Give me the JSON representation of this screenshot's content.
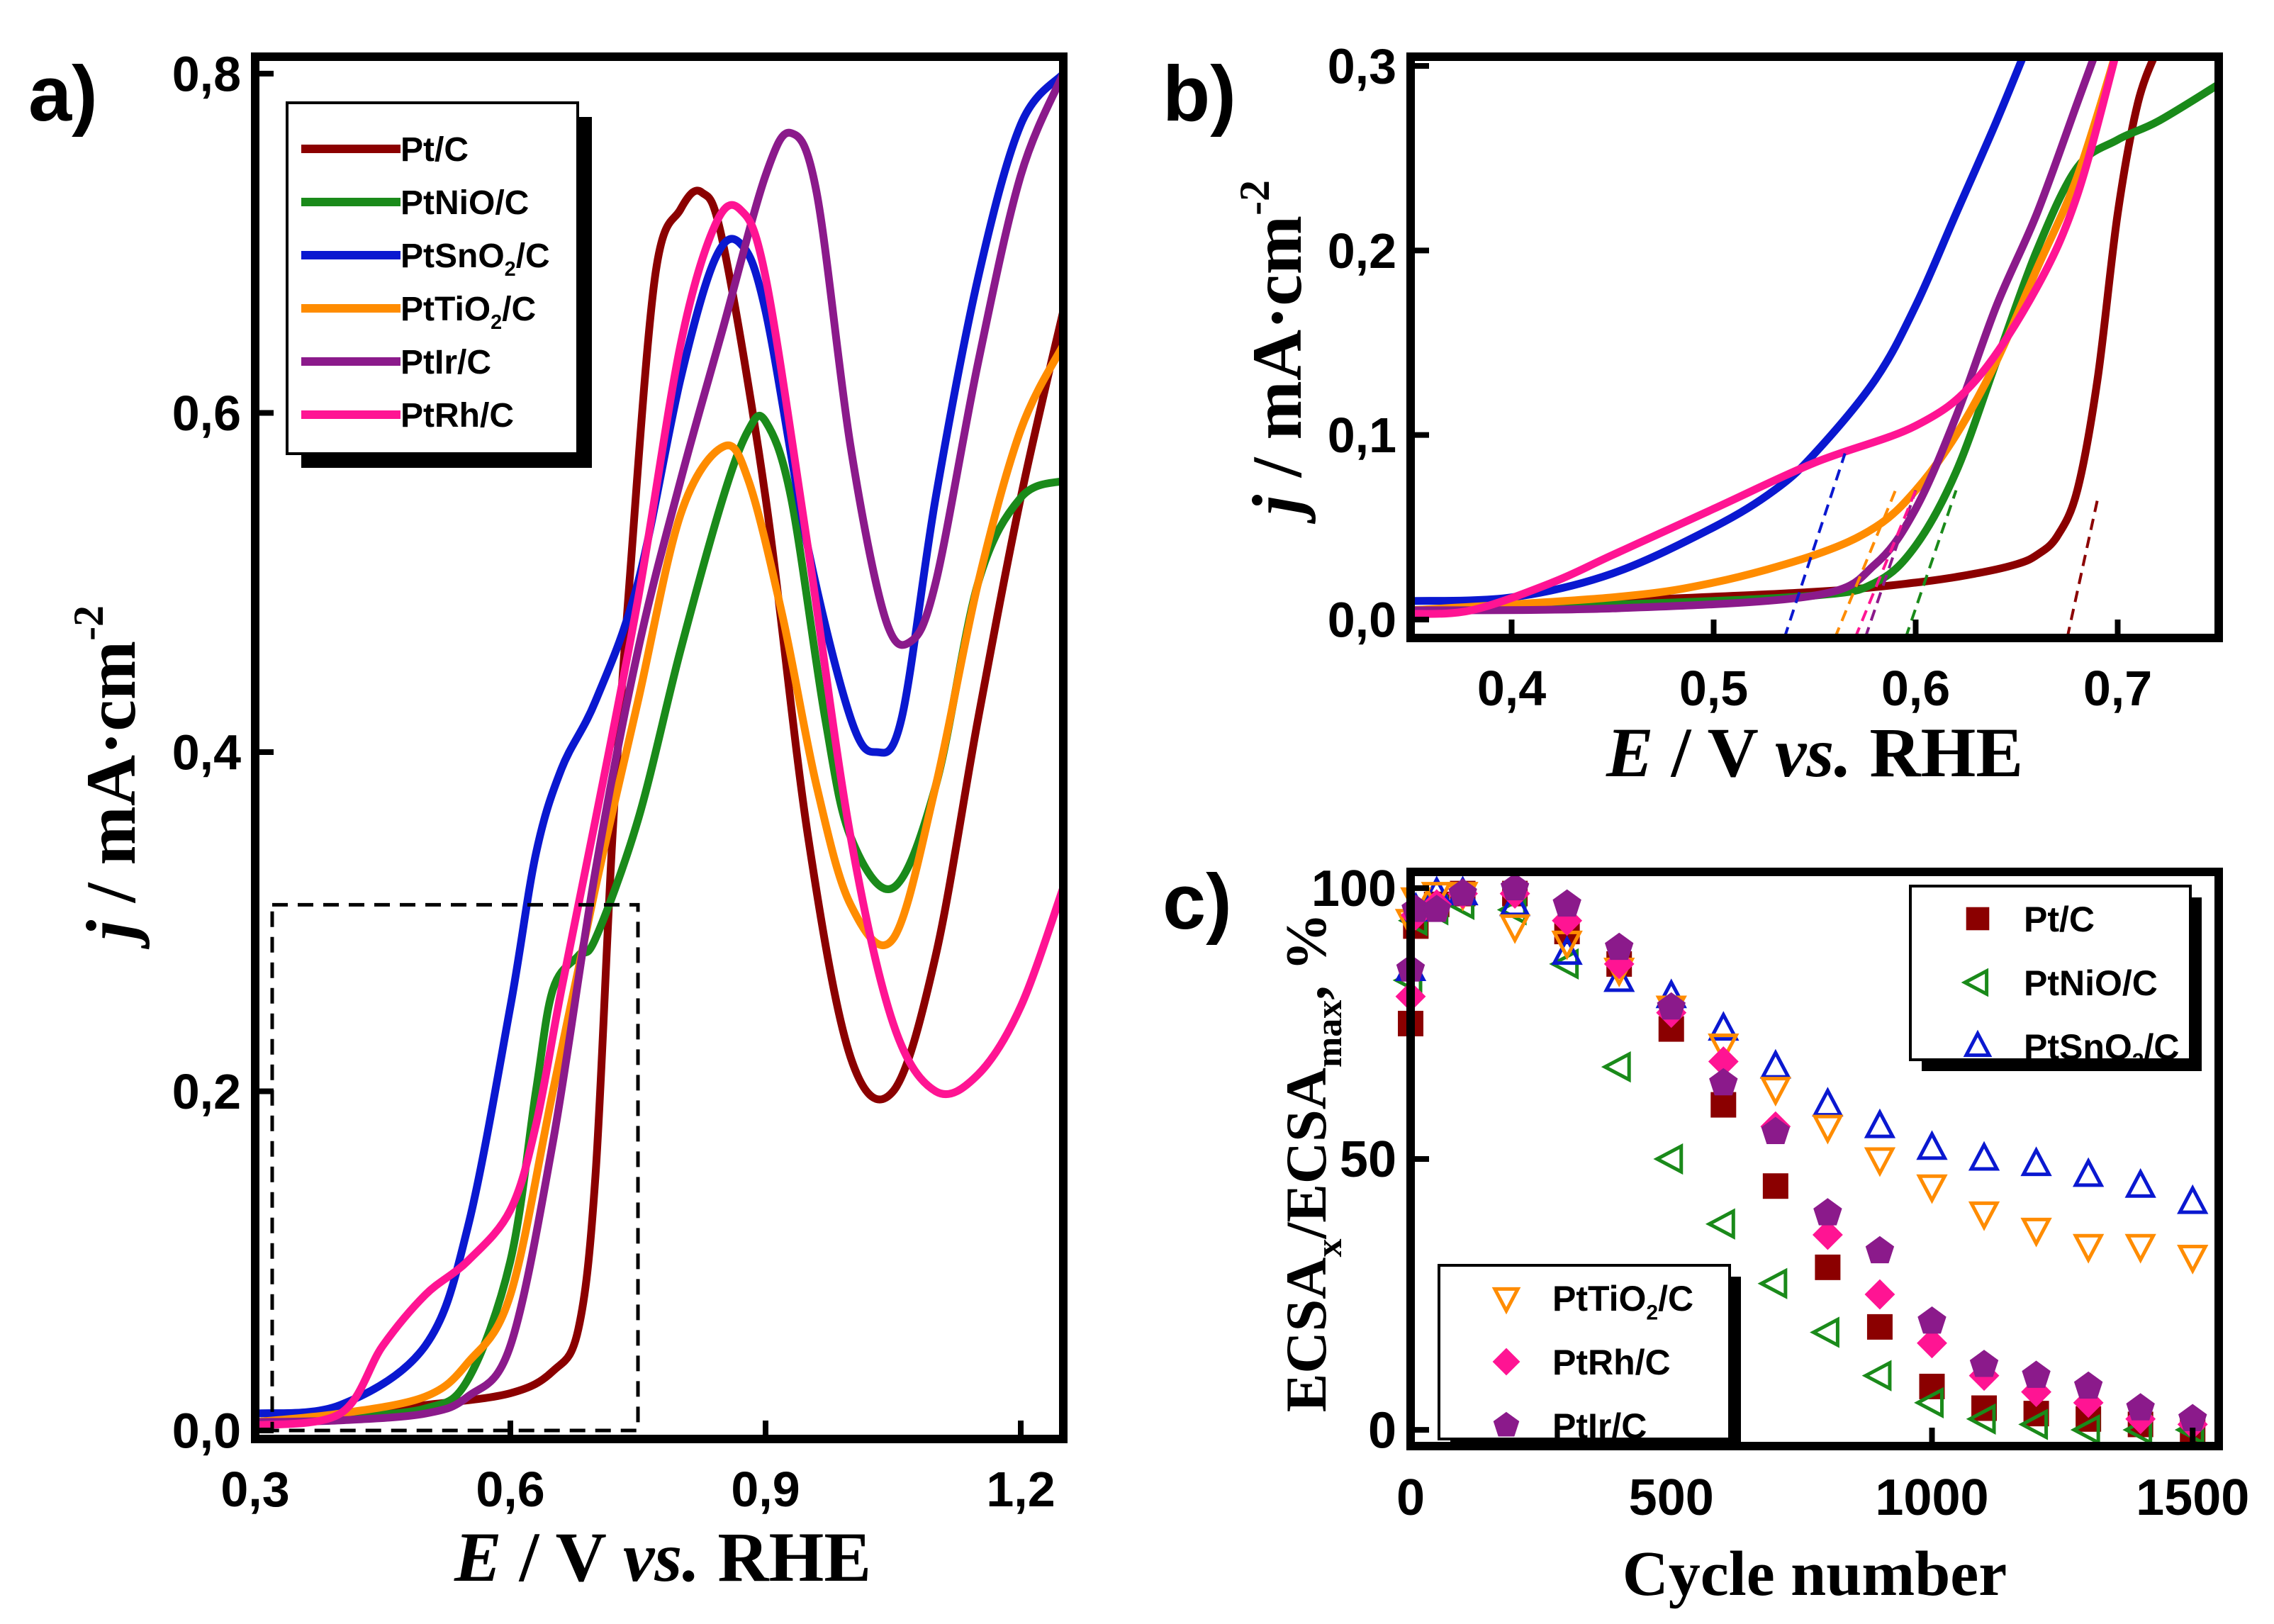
{
  "chart_data": [
    {
      "panel": "a)",
      "type": "line",
      "xlabel": {
        "italic": "E",
        "rest": " / V ",
        "italic2": "vs.",
        "rest2": " RHE"
      },
      "ylabel": {
        "italic": "j",
        "rest": " / mA·cm",
        "sup": "-2"
      },
      "xlim": [
        0.3,
        1.25
      ],
      "ylim": [
        -0.005,
        0.81
      ],
      "xticks": [
        0.3,
        0.6,
        0.9,
        1.2
      ],
      "xtick_labels": [
        "0,3",
        "0,6",
        "0,9",
        "1,2"
      ],
      "yticks": [
        0.0,
        0.2,
        0.4,
        0.6,
        0.8
      ],
      "ytick_labels": [
        "0,0",
        "0,2",
        "0,4",
        "0,6",
        "0,8"
      ],
      "zoom_box": {
        "x": [
          0.32,
          0.75
        ],
        "y": [
          0.0,
          0.31
        ]
      },
      "legend": {
        "position": "top-left"
      },
      "series": [
        {
          "name": "Pt/C",
          "base": "Pt",
          "sub": "",
          "tail": "/C",
          "color": "#8b0000",
          "x": [
            0.3,
            0.4,
            0.5,
            0.6,
            0.65,
            0.68,
            0.7,
            0.72,
            0.74,
            0.77,
            0.8,
            0.825,
            0.85,
            0.9,
            0.95,
            1.0,
            1.05,
            1.1,
            1.15,
            1.2,
            1.25
          ],
          "y": [
            0.005,
            0.01,
            0.015,
            0.022,
            0.035,
            0.06,
            0.15,
            0.35,
            0.5,
            0.68,
            0.72,
            0.73,
            0.7,
            0.55,
            0.35,
            0.22,
            0.2,
            0.28,
            0.42,
            0.55,
            0.66
          ]
        },
        {
          "name": "PtNiO/C",
          "base": "PtNiO",
          "sub": "",
          "tail": "/C",
          "color": "#1a8a1a",
          "x": [
            0.3,
            0.4,
            0.5,
            0.55,
            0.6,
            0.63,
            0.65,
            0.68,
            0.7,
            0.75,
            0.8,
            0.85,
            0.88,
            0.9,
            0.93,
            0.97,
            1.0,
            1.05,
            1.1,
            1.15,
            1.2,
            1.25
          ],
          "y": [
            0.005,
            0.008,
            0.013,
            0.03,
            0.1,
            0.2,
            0.26,
            0.28,
            0.29,
            0.36,
            0.46,
            0.55,
            0.59,
            0.595,
            0.55,
            0.42,
            0.35,
            0.32,
            0.38,
            0.5,
            0.55,
            0.56
          ]
        },
        {
          "name": "PtSnO2/C",
          "base": "PtSnO",
          "sub": "2",
          "tail": "/C",
          "color": "#0a18d0",
          "x": [
            0.3,
            0.4,
            0.5,
            0.55,
            0.6,
            0.63,
            0.66,
            0.7,
            0.75,
            0.8,
            0.84,
            0.87,
            0.9,
            0.95,
            1.0,
            1.03,
            1.06,
            1.1,
            1.15,
            1.2,
            1.25
          ],
          "y": [
            0.01,
            0.015,
            0.05,
            0.12,
            0.25,
            0.34,
            0.39,
            0.43,
            0.5,
            0.62,
            0.69,
            0.7,
            0.66,
            0.52,
            0.42,
            0.4,
            0.42,
            0.55,
            0.68,
            0.77,
            0.8
          ]
        },
        {
          "name": "PtTiO2/C",
          "base": "PtTiO",
          "sub": "2",
          "tail": "/C",
          "color": "#ff8c00",
          "x": [
            0.3,
            0.4,
            0.5,
            0.55,
            0.6,
            0.65,
            0.7,
            0.75,
            0.8,
            0.85,
            0.88,
            0.92,
            0.96,
            1.0,
            1.05,
            1.1,
            1.15,
            1.2,
            1.25
          ],
          "y": [
            0.005,
            0.01,
            0.02,
            0.04,
            0.08,
            0.2,
            0.32,
            0.43,
            0.54,
            0.58,
            0.56,
            0.48,
            0.38,
            0.31,
            0.29,
            0.38,
            0.5,
            0.59,
            0.64
          ]
        },
        {
          "name": "PtIr/C",
          "base": "PtIr",
          "sub": "",
          "tail": "/C",
          "color": "#8b1a8b",
          "x": [
            0.3,
            0.4,
            0.5,
            0.55,
            0.6,
            0.65,
            0.7,
            0.75,
            0.8,
            0.85,
            0.9,
            0.93,
            0.96,
            1.0,
            1.04,
            1.07,
            1.1,
            1.15,
            1.2,
            1.25
          ],
          "y": [
            0.005,
            0.006,
            0.01,
            0.02,
            0.05,
            0.17,
            0.33,
            0.46,
            0.56,
            0.65,
            0.74,
            0.765,
            0.73,
            0.58,
            0.48,
            0.465,
            0.5,
            0.63,
            0.74,
            0.8
          ]
        },
        {
          "name": "PtRh/C",
          "base": "PtRh",
          "sub": "",
          "tail": "/C",
          "color": "#ff1493",
          "x": [
            0.3,
            0.4,
            0.45,
            0.5,
            0.55,
            0.6,
            0.63,
            0.66,
            0.7,
            0.75,
            0.8,
            0.84,
            0.87,
            0.9,
            0.95,
            1.0,
            1.05,
            1.1,
            1.15,
            1.2,
            1.25
          ],
          "y": [
            0.003,
            0.01,
            0.05,
            0.08,
            0.1,
            0.13,
            0.18,
            0.26,
            0.36,
            0.49,
            0.64,
            0.71,
            0.72,
            0.68,
            0.52,
            0.35,
            0.24,
            0.2,
            0.21,
            0.25,
            0.32
          ]
        }
      ]
    },
    {
      "panel": "b)",
      "type": "line",
      "xlabel": {
        "italic": "E",
        "rest": " / V ",
        "italic2": "vs.",
        "rest2": " RHE"
      },
      "ylabel": {
        "italic": "j",
        "rest": " / mA·cm",
        "sup": "-2"
      },
      "xlim": [
        0.35,
        0.75
      ],
      "ylim": [
        -0.01,
        0.305
      ],
      "xticks": [
        0.4,
        0.5,
        0.6,
        0.7
      ],
      "xtick_labels": [
        "0,4",
        "0,5",
        "0,6",
        "0,7"
      ],
      "yticks": [
        0.0,
        0.1,
        0.2,
        0.3
      ],
      "ytick_labels": [
        "0,0",
        "0,1",
        "0,2",
        "0,3"
      ],
      "series": [
        {
          "name": "Pt/C",
          "color": "#8b0000",
          "x": [
            0.35,
            0.45,
            0.55,
            0.6,
            0.63,
            0.65,
            0.66,
            0.67,
            0.68,
            0.69,
            0.7,
            0.71,
            0.72
          ],
          "y": [
            0.005,
            0.01,
            0.015,
            0.02,
            0.025,
            0.03,
            0.035,
            0.045,
            0.07,
            0.13,
            0.22,
            0.28,
            0.31
          ]
        },
        {
          "name": "PtNiO/C",
          "color": "#1a8a1a",
          "x": [
            0.35,
            0.45,
            0.55,
            0.58,
            0.6,
            0.62,
            0.64,
            0.66,
            0.68,
            0.7,
            0.72,
            0.75
          ],
          "y": [
            0.005,
            0.008,
            0.013,
            0.02,
            0.04,
            0.08,
            0.14,
            0.2,
            0.245,
            0.26,
            0.27,
            0.29
          ]
        },
        {
          "name": "PtSnO2/C",
          "color": "#0a18d0",
          "x": [
            0.35,
            0.4,
            0.45,
            0.5,
            0.53,
            0.55,
            0.58,
            0.6,
            0.62,
            0.64,
            0.655
          ],
          "y": [
            0.01,
            0.012,
            0.025,
            0.05,
            0.07,
            0.09,
            0.13,
            0.17,
            0.22,
            0.27,
            0.31
          ]
        },
        {
          "name": "PtTiO2/C",
          "color": "#ff8c00",
          "x": [
            0.35,
            0.45,
            0.5,
            0.55,
            0.58,
            0.6,
            0.62,
            0.64,
            0.66,
            0.68,
            0.7
          ],
          "y": [
            0.005,
            0.012,
            0.02,
            0.035,
            0.05,
            0.07,
            0.1,
            0.14,
            0.19,
            0.24,
            0.31
          ]
        },
        {
          "name": "PtIr/C",
          "color": "#8b1a8b",
          "x": [
            0.35,
            0.45,
            0.55,
            0.58,
            0.6,
            0.62,
            0.64,
            0.66,
            0.68,
            0.69
          ],
          "y": [
            0.005,
            0.006,
            0.013,
            0.03,
            0.06,
            0.11,
            0.17,
            0.22,
            0.28,
            0.31
          ]
        },
        {
          "name": "PtRh/C",
          "color": "#ff1493",
          "x": [
            0.35,
            0.38,
            0.42,
            0.45,
            0.5,
            0.55,
            0.6,
            0.63,
            0.66,
            0.68,
            0.7
          ],
          "y": [
            0.003,
            0.005,
            0.02,
            0.035,
            0.06,
            0.085,
            0.105,
            0.13,
            0.18,
            0.23,
            0.31
          ]
        }
      ],
      "tangents": [
        {
          "color": "#8b0000",
          "x": [
            0.675,
            0.69
          ],
          "y": [
            -0.01,
            0.065
          ]
        },
        {
          "color": "#1a8a1a",
          "x": [
            0.595,
            0.62
          ],
          "y": [
            -0.01,
            0.07
          ]
        },
        {
          "color": "#0a18d0",
          "x": [
            0.535,
            0.565
          ],
          "y": [
            -0.01,
            0.09
          ]
        },
        {
          "color": "#ff8c00",
          "x": [
            0.56,
            0.59
          ],
          "y": [
            -0.01,
            0.07
          ]
        },
        {
          "color": "#8b1a8b",
          "x": [
            0.575,
            0.6
          ],
          "y": [
            -0.01,
            0.07
          ]
        },
        {
          "color": "#ff1493",
          "x": [
            0.57,
            0.6
          ],
          "y": [
            -0.01,
            0.07
          ]
        }
      ]
    },
    {
      "panel": "c)",
      "type": "scatter",
      "xlabel": {
        "text": "Cycle number"
      },
      "ylabel": {
        "a": "ECSA",
        "asub": "x",
        "b": "/ECSA",
        "bsub": "max",
        "c": ", %"
      },
      "xlim": [
        0,
        1550
      ],
      "ylim": [
        -3,
        103
      ],
      "xticks": [
        0,
        500,
        1000,
        1500
      ],
      "xtick_labels": [
        "0",
        "500",
        "1000",
        "1500"
      ],
      "yticks": [
        0,
        50,
        100
      ],
      "ytick_labels": [
        "0",
        "50",
        "100"
      ],
      "legend_top": {
        "position": "top-right",
        "items": [
          0,
          1,
          2
        ]
      },
      "legend_bottom": {
        "position": "bottom-left",
        "items": [
          3,
          4,
          5
        ]
      },
      "series": [
        {
          "name": "Pt/C",
          "base": "Pt",
          "sub": "",
          "tail": "/C",
          "color": "#8b0000",
          "marker": "square",
          "x": [
            0,
            10,
            50,
            100,
            200,
            300,
            400,
            500,
            600,
            700,
            800,
            900,
            1000,
            1100,
            1200,
            1300,
            1400,
            1500
          ],
          "y": [
            75,
            93,
            97,
            99,
            99,
            92,
            86,
            74,
            60,
            45,
            30,
            19,
            8,
            4,
            3,
            2,
            1,
            0
          ]
        },
        {
          "name": "PtNiO/C",
          "base": "PtNiO",
          "sub": "",
          "tail": "/C",
          "color": "#1a8a1a",
          "marker": "tri-left",
          "x": [
            0,
            10,
            50,
            100,
            200,
            300,
            400,
            500,
            600,
            700,
            800,
            900,
            1000,
            1100,
            1200,
            1300,
            1400,
            1500
          ],
          "y": [
            83,
            94,
            96,
            97,
            96,
            86,
            67,
            50,
            38,
            27,
            18,
            10,
            5,
            2,
            1,
            0,
            0,
            0
          ]
        },
        {
          "name": "PtSnO2/C",
          "base": "PtSnO",
          "sub": "2",
          "tail": "/C",
          "color": "#0a18d0",
          "marker": "tri-up",
          "x": [
            0,
            10,
            50,
            100,
            200,
            300,
            400,
            500,
            600,
            700,
            800,
            900,
            1000,
            1100,
            1200,
            1300,
            1400,
            1500
          ],
          "y": [
            85,
            96,
            99,
            99,
            97,
            88,
            83,
            80,
            74,
            67,
            60,
            56,
            52,
            50,
            49,
            47,
            45,
            42
          ]
        },
        {
          "name": "PtTiO2/C",
          "base": "PtTiO",
          "sub": "2",
          "tail": "/C",
          "color": "#ff8c00",
          "marker": "tri-down",
          "x": [
            0,
            10,
            50,
            100,
            200,
            300,
            400,
            500,
            600,
            700,
            800,
            900,
            1000,
            1100,
            1200,
            1300,
            1400,
            1500
          ],
          "y": [
            94,
            98,
            99,
            99,
            93,
            90,
            85,
            78,
            71,
            63,
            56,
            50,
            45,
            40,
            37,
            34,
            34,
            32
          ]
        },
        {
          "name": "PtRh/C",
          "base": "PtRh",
          "sub": "",
          "tail": "/C",
          "color": "#ff1493",
          "marker": "diamond",
          "x": [
            0,
            10,
            50,
            100,
            200,
            300,
            400,
            500,
            600,
            700,
            800,
            900,
            1000,
            1100,
            1200,
            1300,
            1400,
            1500
          ],
          "y": [
            80,
            95,
            97,
            99,
            99,
            94,
            86,
            77,
            68,
            56,
            36,
            25,
            16,
            10,
            7,
            5,
            2,
            1
          ]
        },
        {
          "name": "PtIr/C",
          "base": "PtIr",
          "sub": "",
          "tail": "/C",
          "color": "#8b1a8b",
          "marker": "pentagon",
          "x": [
            0,
            10,
            50,
            100,
            200,
            300,
            400,
            500,
            600,
            700,
            800,
            900,
            1000,
            1100,
            1200,
            1300,
            1400,
            1500
          ],
          "y": [
            85,
            96,
            96,
            99,
            100,
            97,
            89,
            78,
            64,
            55,
            40,
            33,
            20,
            12,
            10,
            8,
            4,
            2
          ]
        }
      ]
    }
  ]
}
